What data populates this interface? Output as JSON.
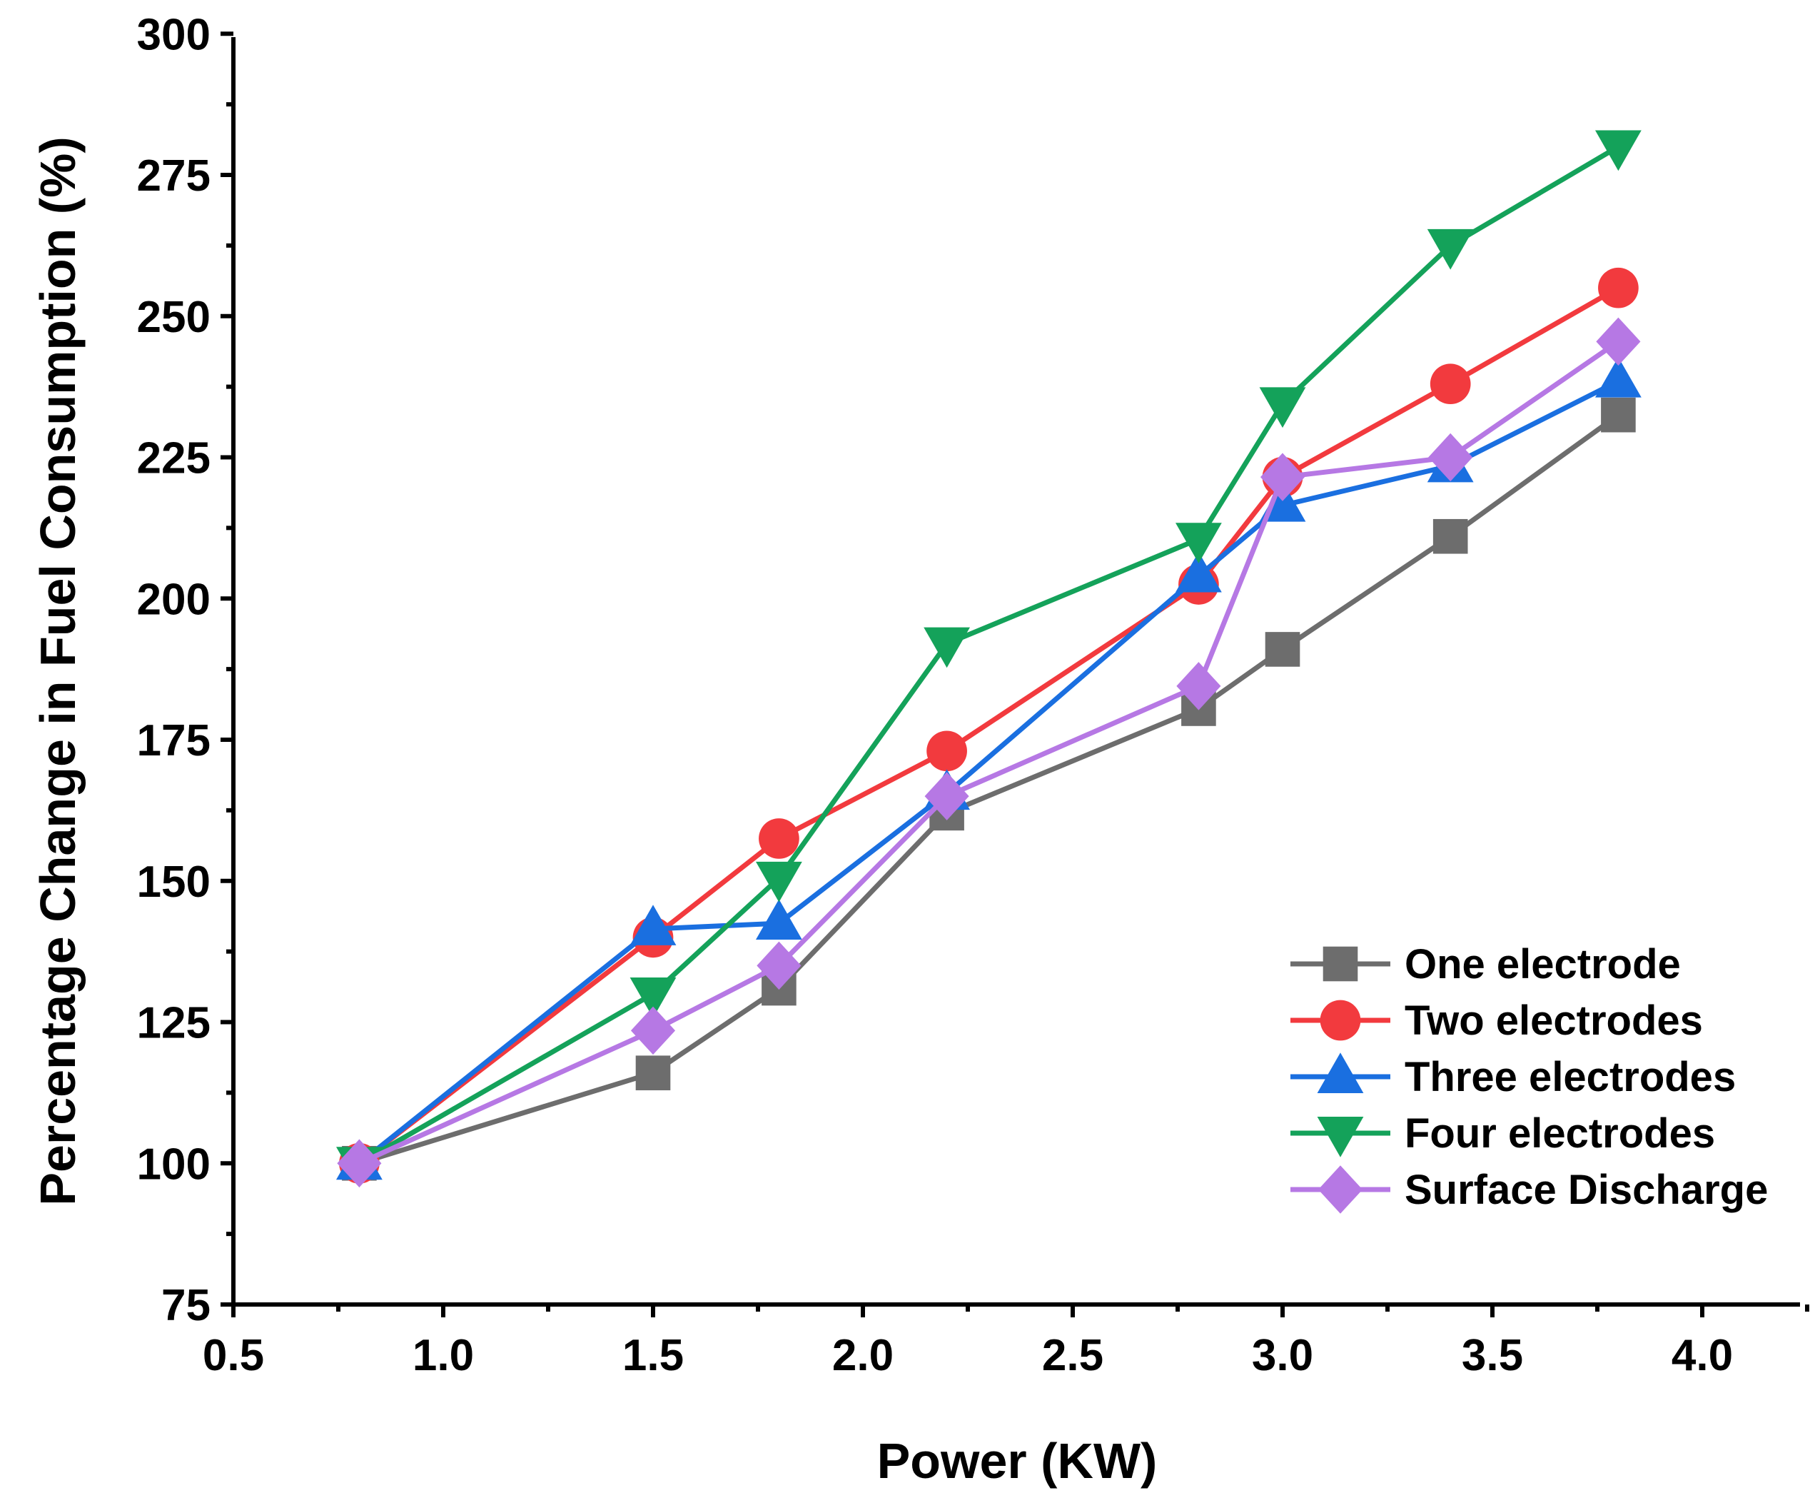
{
  "chart_data": {
    "type": "line",
    "title": "",
    "xlabel": "Power (KW)",
    "ylabel": "Percentage Change in Fuel Consumption (%)",
    "xlim": [
      0.5,
      4.25
    ],
    "ylim": [
      75,
      300
    ],
    "xticks": [
      "0.5",
      "1.0",
      "1.5",
      "2.0",
      "2.5",
      "3.0",
      "3.5",
      "4.0"
    ],
    "yticks": [
      "75",
      "100",
      "125",
      "150",
      "175",
      "200",
      "225",
      "250",
      "275",
      "300"
    ],
    "x": [
      0.8,
      1.5,
      1.8,
      2.2,
      2.8,
      3.0,
      3.4,
      3.8
    ],
    "legend_position": "lower-right",
    "series": [
      {
        "name": "One electrode",
        "color": "#6d6d6d",
        "marker": "square",
        "values": [
          100,
          116,
          131,
          162,
          180.5,
          191,
          211,
          232.5
        ]
      },
      {
        "name": "Two electrodes",
        "color": "#f23a3e",
        "marker": "circle",
        "values": [
          100,
          140,
          157.5,
          173,
          202.5,
          221.5,
          238,
          255
        ]
      },
      {
        "name": "Three electrodes",
        "color": "#1a6fe0",
        "marker": "triangle-up",
        "values": [
          100,
          141.5,
          142.5,
          165.5,
          204,
          216.5,
          223.5,
          238.5
        ]
      },
      {
        "name": "Four electrodes",
        "color": "#14a25a",
        "marker": "triangle-down",
        "values": [
          100,
          130,
          150.5,
          192,
          210.5,
          234.5,
          262.5,
          280
        ]
      },
      {
        "name": "Surface Discharge",
        "color": "#b678e4",
        "marker": "diamond",
        "values": [
          100,
          123.5,
          135,
          165,
          184.5,
          221.5,
          225,
          245.5
        ]
      }
    ]
  }
}
